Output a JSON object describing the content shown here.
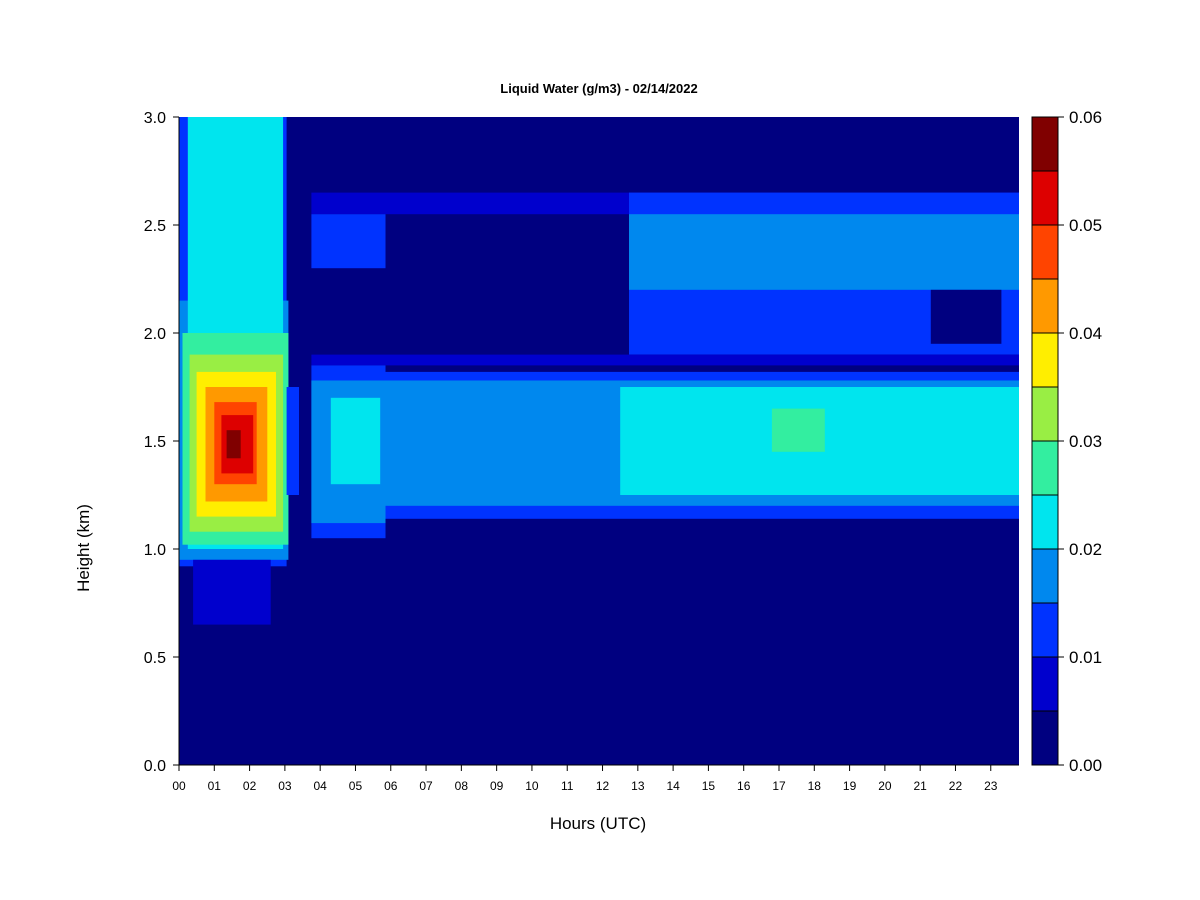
{
  "chart_data": {
    "type": "heatmap",
    "title": "Liquid Water (g/m3) - 02/14/2022",
    "xlabel": "Hours (UTC)",
    "ylabel": "Height (km)",
    "xlim": [
      0,
      23.8
    ],
    "ylim": [
      0,
      3.0
    ],
    "x_ticks": [
      0,
      1,
      2,
      3,
      4,
      5,
      6,
      7,
      8,
      9,
      10,
      11,
      12,
      13,
      14,
      15,
      16,
      17,
      18,
      19,
      20,
      21,
      22,
      23
    ],
    "x_tick_labels": [
      "00",
      "01",
      "02",
      "03",
      "04",
      "05",
      "06",
      "07",
      "08",
      "09",
      "10",
      "11",
      "12",
      "13",
      "14",
      "15",
      "16",
      "17",
      "18",
      "19",
      "20",
      "21",
      "22",
      "23"
    ],
    "y_ticks": [
      0.0,
      0.5,
      1.0,
      1.5,
      2.0,
      2.5,
      3.0
    ],
    "y_tick_labels": [
      "0.0",
      "0.5",
      "1.0",
      "1.5",
      "2.0",
      "2.5",
      "3.0"
    ],
    "colorbar": {
      "levels": [
        0.0,
        0.005,
        0.01,
        0.015,
        0.02,
        0.025,
        0.03,
        0.035,
        0.04,
        0.045,
        0.05,
        0.055,
        0.06
      ],
      "colors": [
        "#000080",
        "#0000cd",
        "#0033ff",
        "#0088ee",
        "#00e5ee",
        "#33eea0",
        "#99ee44",
        "#ffee00",
        "#ff9900",
        "#ff4400",
        "#dd0000",
        "#800000"
      ],
      "tick_values": [
        0.0,
        0.01,
        0.02,
        0.03,
        0.04,
        0.05,
        0.06
      ],
      "tick_labels": [
        "0.00",
        "0.01",
        "0.02",
        "0.03",
        "0.04",
        "0.05",
        "0.06"
      ]
    },
    "layers": [
      {
        "x": [
          0.0,
          3.05
        ],
        "y": [
          0.92,
          3.0
        ],
        "value": 0.012
      },
      {
        "x": [
          0.0,
          3.1
        ],
        "y": [
          0.95,
          2.15
        ],
        "value": 0.017
      },
      {
        "x": [
          0.25,
          2.95
        ],
        "y": [
          1.0,
          3.0
        ],
        "value": 0.021
      },
      {
        "x": [
          0.1,
          3.1
        ],
        "y": [
          1.02,
          2.0
        ],
        "value": 0.026
      },
      {
        "x": [
          0.3,
          2.95
        ],
        "y": [
          1.08,
          1.9
        ],
        "value": 0.031
      },
      {
        "x": [
          0.5,
          2.75
        ],
        "y": [
          1.15,
          1.82
        ],
        "value": 0.036
      },
      {
        "x": [
          0.75,
          2.5
        ],
        "y": [
          1.22,
          1.75
        ],
        "value": 0.041
      },
      {
        "x": [
          1.0,
          2.2
        ],
        "y": [
          1.3,
          1.68
        ],
        "value": 0.046
      },
      {
        "x": [
          1.2,
          2.1
        ],
        "y": [
          1.35,
          1.62
        ],
        "value": 0.051
      },
      {
        "x": [
          1.35,
          1.75
        ],
        "y": [
          1.42,
          1.55
        ],
        "value": 0.056
      },
      {
        "x": [
          0.4,
          2.6
        ],
        "y": [
          0.65,
          0.95
        ],
        "value": 0.007
      },
      {
        "x": [
          3.05,
          3.4
        ],
        "y": [
          1.25,
          1.75
        ],
        "value": 0.012
      },
      {
        "x": [
          3.75,
          23.8
        ],
        "y": [
          2.55,
          2.65
        ],
        "value": 0.007
      },
      {
        "x": [
          3.75,
          5.85
        ],
        "y": [
          2.3,
          2.55
        ],
        "value": 0.012
      },
      {
        "x": [
          12.75,
          23.8
        ],
        "y": [
          1.9,
          2.65
        ],
        "value": 0.012
      },
      {
        "x": [
          12.75,
          23.8
        ],
        "y": [
          2.2,
          2.55
        ],
        "value": 0.016
      },
      {
        "x": [
          21.3,
          23.3
        ],
        "y": [
          1.95,
          2.2
        ],
        "value": 0.003
      },
      {
        "x": [
          3.75,
          23.8
        ],
        "y": [
          1.85,
          1.9
        ],
        "value": 0.008
      },
      {
        "x": [
          3.75,
          5.85
        ],
        "y": [
          1.05,
          1.85
        ],
        "value": 0.011
      },
      {
        "x": [
          5.85,
          23.8
        ],
        "y": [
          1.14,
          1.82
        ],
        "value": 0.012
      },
      {
        "x": [
          3.75,
          5.85
        ],
        "y": [
          1.12,
          1.78
        ],
        "value": 0.016
      },
      {
        "x": [
          5.85,
          23.8
        ],
        "y": [
          1.2,
          1.78
        ],
        "value": 0.016
      },
      {
        "x": [
          4.3,
          5.7
        ],
        "y": [
          1.3,
          1.7
        ],
        "value": 0.021
      },
      {
        "x": [
          9.0,
          11.5
        ],
        "y": [
          1.4,
          1.7
        ],
        "value": 0.019
      },
      {
        "x": [
          12.5,
          23.8
        ],
        "y": [
          1.25,
          1.75
        ],
        "value": 0.021
      },
      {
        "x": [
          13.0,
          21.0
        ],
        "y": [
          1.38,
          1.7
        ],
        "value": 0.023
      },
      {
        "x": [
          16.8,
          18.3
        ],
        "y": [
          1.45,
          1.65
        ],
        "value": 0.026
      }
    ]
  }
}
